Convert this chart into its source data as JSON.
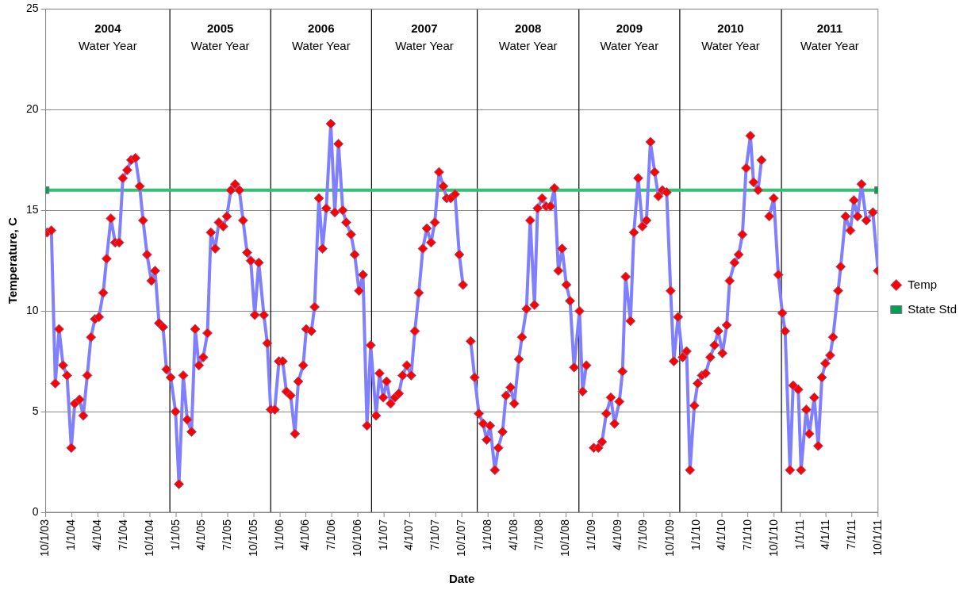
{
  "chart_data": {
    "type": "line",
    "xlabel": "Date",
    "ylabel": "Temperature, C",
    "xlim": [
      "2003-10-01",
      "2011-10-01"
    ],
    "ylim": [
      0,
      25
    ],
    "yticks": [
      0,
      5,
      10,
      15,
      20,
      25
    ],
    "xticks": [
      {
        "value": "2003-10-01",
        "label": "10/1/03"
      },
      {
        "value": "2004-01-01",
        "label": "1/1/04"
      },
      {
        "value": "2004-04-01",
        "label": "4/1/04"
      },
      {
        "value": "2004-07-01",
        "label": "7/1/04"
      },
      {
        "value": "2004-10-01",
        "label": "10/1/04"
      },
      {
        "value": "2005-01-01",
        "label": "1/1/05"
      },
      {
        "value": "2005-04-01",
        "label": "4/1/05"
      },
      {
        "value": "2005-07-01",
        "label": "7/1/05"
      },
      {
        "value": "2005-10-01",
        "label": "10/1/05"
      },
      {
        "value": "2006-01-01",
        "label": "1/1/06"
      },
      {
        "value": "2006-04-01",
        "label": "4/1/06"
      },
      {
        "value": "2006-07-01",
        "label": "7/1/06"
      },
      {
        "value": "2006-10-01",
        "label": "10/1/06"
      },
      {
        "value": "2007-01-01",
        "label": "1/1/07"
      },
      {
        "value": "2007-04-01",
        "label": "4/1/07"
      },
      {
        "value": "2007-07-01",
        "label": "7/1/07"
      },
      {
        "value": "2007-10-01",
        "label": "10/1/07"
      },
      {
        "value": "2008-01-01",
        "label": "1/1/08"
      },
      {
        "value": "2008-04-01",
        "label": "4/1/08"
      },
      {
        "value": "2008-07-01",
        "label": "7/1/08"
      },
      {
        "value": "2008-10-01",
        "label": "10/1/08"
      },
      {
        "value": "2009-01-01",
        "label": "1/1/09"
      },
      {
        "value": "2009-04-01",
        "label": "4/1/09"
      },
      {
        "value": "2009-07-01",
        "label": "7/1/09"
      },
      {
        "value": "2009-10-01",
        "label": "10/1/09"
      },
      {
        "value": "2010-01-01",
        "label": "1/1/10"
      },
      {
        "value": "2010-04-01",
        "label": "4/1/10"
      },
      {
        "value": "2010-07-01",
        "label": "7/1/10"
      },
      {
        "value": "2010-10-01",
        "label": "10/1/10"
      },
      {
        "value": "2011-01-01",
        "label": "1/1/11"
      },
      {
        "value": "2011-04-01",
        "label": "4/1/11"
      },
      {
        "value": "2011-07-01",
        "label": "7/1/11"
      },
      {
        "value": "2011-10-01",
        "label": "10/1/11"
      }
    ],
    "grid": "y",
    "legend": "right",
    "line_style": "solid",
    "series": [
      {
        "name": "Temp",
        "color": "#8080ff",
        "marker": "diamond",
        "x": [
          "2003-10-06",
          "2003-10-21",
          "2003-11-04",
          "2003-11-17",
          "2003-12-01",
          "2003-12-15",
          "2003-12-30",
          "2004-01-11",
          "2004-01-28",
          "2004-02-10",
          "2004-02-24",
          "2004-03-08",
          "2004-03-22",
          "2004-04-05",
          "2004-04-20",
          "2004-05-02",
          "2004-05-17",
          "2004-06-01",
          "2004-06-15",
          "2004-06-28",
          "2004-07-13",
          "2004-07-27",
          "2004-08-11",
          "2004-08-26",
          "2004-09-07",
          "2004-09-21",
          "2004-10-06",
          "2004-10-19",
          "2004-11-02",
          "2004-11-16",
          "2004-11-28",
          "2004-12-13",
          "2004-12-30",
          "2005-01-11",
          "2005-01-26",
          "2005-02-09",
          "2005-02-24",
          "2005-03-09",
          "2005-03-22",
          "2005-04-06",
          "2005-04-21",
          "2005-05-03",
          "2005-05-18",
          "2005-05-31",
          "2005-06-15",
          "2005-06-28",
          "2005-07-12",
          "2005-07-27",
          "2005-08-11",
          "2005-08-24",
          "2005-09-07",
          "2005-09-20",
          "2005-10-04",
          "2005-10-18",
          "2005-11-05",
          "2005-11-17",
          "2005-11-29",
          "2005-12-13",
          "2005-12-28",
          "2006-01-10",
          "2006-01-23",
          "2006-02-07",
          "2006-02-22",
          "2006-03-06",
          "2006-03-23",
          "2006-04-03",
          "2006-04-21",
          "2006-05-02",
          "2006-05-17",
          "2006-05-30",
          "2006-06-12",
          "2006-06-28",
          "2006-07-12",
          "2006-07-25",
          "2006-08-09",
          "2006-08-21",
          "2006-09-07",
          "2006-09-20",
          "2006-10-05",
          "2006-10-19",
          "2006-11-02",
          "2006-11-15",
          "2006-12-04",
          "2006-12-16",
          "2006-12-29",
          "2007-01-10",
          "2007-01-24",
          "2007-02-08",
          "2007-02-22",
          "2007-03-07",
          "2007-03-22",
          "2007-04-06",
          "2007-04-19",
          "2007-05-03",
          "2007-05-17",
          "2007-05-31",
          "2007-06-15",
          "2007-06-28",
          "2007-07-13",
          "2007-07-28",
          "2007-08-09",
          "2007-08-23",
          "2007-09-07",
          "2007-09-22",
          "2007-10-05",
          "2007-10-18",
          "2007-11-01",
          "2007-11-15",
          "2007-11-30",
          "2007-12-15",
          "2007-12-27",
          "2008-01-08",
          "2008-01-25",
          "2008-02-06",
          "2008-02-21",
          "2008-03-04",
          "2008-03-20",
          "2008-04-02",
          "2008-04-18",
          "2008-04-29",
          "2008-05-15",
          "2008-05-28",
          "2008-06-12",
          "2008-06-23",
          "2008-07-09",
          "2008-07-23",
          "2008-08-07",
          "2008-08-21",
          "2008-09-04",
          "2008-09-17",
          "2008-10-02",
          "2008-10-15",
          "2008-10-29",
          "2008-11-17",
          "2008-11-28",
          "2008-12-11",
          "2008-12-25",
          "2009-01-06",
          "2009-01-22",
          "2009-02-04",
          "2009-02-19",
          "2009-03-07",
          "2009-03-20",
          "2009-04-06",
          "2009-04-17",
          "2009-04-28",
          "2009-05-15",
          "2009-05-27",
          "2009-06-11",
          "2009-06-26",
          "2009-07-10",
          "2009-07-24",
          "2009-08-08",
          "2009-08-21",
          "2009-09-04",
          "2009-09-19",
          "2009-10-03",
          "2009-10-14",
          "2009-10-29",
          "2009-11-14",
          "2009-11-28",
          "2009-12-10",
          "2009-12-25",
          "2010-01-06",
          "2010-01-21",
          "2010-02-03",
          "2010-02-19",
          "2010-03-06",
          "2010-03-19",
          "2010-04-03",
          "2010-04-18",
          "2010-04-28",
          "2010-05-15",
          "2010-05-30",
          "2010-06-12",
          "2010-06-25",
          "2010-07-10",
          "2010-07-21",
          "2010-08-06",
          "2010-08-18",
          "2010-09-01",
          "2010-09-14",
          "2010-09-30",
          "2010-10-16",
          "2010-10-30",
          "2010-11-09",
          "2010-11-26",
          "2010-12-07",
          "2010-12-25",
          "2011-01-04",
          "2011-01-22",
          "2011-02-02",
          "2011-02-19",
          "2011-03-05",
          "2011-03-18",
          "2011-03-30",
          "2011-04-16",
          "2011-04-26",
          "2011-05-14",
          "2011-05-23",
          "2011-06-09",
          "2011-06-26",
          "2011-07-08",
          "2011-07-21",
          "2011-08-04",
          "2011-08-21",
          "2011-09-13",
          "2011-10-01"
        ],
        "values": [
          13.9,
          14.0,
          6.4,
          9.1,
          7.3,
          6.8,
          3.2,
          5.4,
          5.6,
          4.8,
          6.8,
          8.7,
          9.6,
          9.7,
          10.9,
          12.6,
          14.6,
          13.4,
          13.4,
          16.6,
          17.0,
          17.5,
          17.6,
          16.2,
          14.5,
          12.8,
          11.5,
          12.0,
          9.4,
          9.2,
          7.1,
          6.7,
          5.0,
          1.4,
          6.8,
          4.6,
          4.0,
          9.1,
          7.3,
          7.7,
          8.9,
          13.9,
          13.1,
          14.4,
          14.2,
          14.7,
          16.0,
          16.3,
          16.0,
          14.5,
          12.9,
          12.5,
          9.8,
          12.4,
          9.8,
          8.4,
          5.1,
          5.1,
          7.5,
          7.5,
          6.0,
          5.8,
          3.9,
          6.5,
          7.3,
          9.1,
          9.0,
          10.2,
          15.6,
          13.1,
          15.1,
          19.3,
          14.9,
          18.3,
          15.0,
          14.4,
          13.8,
          12.8,
          11.0,
          11.8,
          4.3,
          8.3,
          4.8,
          6.9,
          5.7,
          6.5,
          5.4,
          5.7,
          5.9,
          6.8,
          7.3,
          6.8,
          9.0,
          10.9,
          13.1,
          14.1,
          13.4,
          14.4,
          16.9,
          16.2,
          15.6,
          15.6,
          15.8,
          12.8,
          11.3,
          null,
          8.5,
          6.7,
          4.9,
          4.4,
          3.6,
          4.3,
          2.1,
          3.2,
          4.0,
          5.8,
          6.2,
          5.4,
          7.6,
          8.7,
          10.1,
          14.5,
          10.3,
          15.1,
          15.6,
          15.2,
          15.2,
          16.1,
          12.0,
          13.1,
          11.3,
          10.5,
          7.2,
          10.0,
          6.0,
          7.3,
          null,
          3.2,
          3.2,
          3.5,
          4.9,
          5.7,
          4.4,
          5.5,
          7.0,
          11.7,
          9.5,
          13.9,
          16.6,
          14.2,
          14.5,
          18.4,
          16.9,
          15.7,
          16.0,
          15.9,
          11.0,
          7.5,
          9.7,
          7.7,
          8.0,
          2.1,
          5.3,
          6.4,
          6.8,
          6.9,
          7.7,
          8.3,
          9.0,
          7.9,
          9.3,
          11.5,
          12.4,
          12.8,
          13.8,
          17.1,
          18.7,
          16.4,
          16.0,
          17.5,
          null,
          14.7,
          15.6,
          11.8,
          9.9,
          9.0,
          2.1,
          6.3,
          6.1,
          2.1,
          5.1,
          3.9,
          5.7,
          3.3,
          6.7,
          7.4,
          7.8,
          8.7,
          11.0,
          12.2,
          14.7,
          14.0,
          15.5,
          14.7,
          16.3,
          14.5,
          14.9,
          12.0
        ],
        "colors": [
          "#ff0000",
          "#ff0000",
          "#ff0000",
          "#ff0000",
          "#ff0000",
          "#ff0000",
          "#ff0000",
          "#ff0000",
          "#ff0000",
          "#ff0000",
          "#ff0000",
          "#ff0000",
          "#ff0000",
          "#ff0000",
          "#ff0000",
          "#ff0000",
          "#ff0000",
          "#ff0000",
          "#ff0000",
          "#ff0000",
          "#ff0000",
          "#ff0000",
          "#ff0000",
          "#ff0000",
          "#ff0000",
          "#ff0000",
          "#ff0000",
          "#ff0000",
          "#ff0000",
          "#ff0000",
          "#ff0000",
          "#ff0000",
          "#ff0000",
          "#ff0000",
          "#ff0000",
          "#ff0000",
          "#ff0000",
          "#ff0000",
          "#ff0000",
          "#ff0000",
          "#ff0000",
          "#ff0000",
          "#ff0000",
          "#ff0000",
          "#ff0000",
          "#ff0000",
          "#ff0000",
          "#ff0000",
          "#ff0000",
          "#ff0000",
          "#ff0000",
          "#ff0000",
          "#ff0000",
          "#ff0000",
          "#ff0000",
          "#ff0000",
          "#ff0000",
          "#ff0000",
          "#ff0000",
          "#ff0000",
          "#ff0000",
          "#ff0000",
          "#ff0000",
          "#ff0000",
          "#ff0000",
          "#ff0000",
          "#ff0000",
          "#ff0000",
          "#ff0000",
          "#ff0000",
          "#ff0000",
          "#ff0000",
          "#ff0000",
          "#ff0000",
          "#ff0000",
          "#ff0000",
          "#ff0000",
          "#ff0000",
          "#ff0000",
          "#ff0000",
          "#ff0000",
          "#ff0000",
          "#ff0000",
          "#ff0000",
          "#ff0000",
          "#ff0000",
          "#ff0000",
          "#ff0000",
          "#ff0000",
          "#ff0000",
          "#ff0000",
          "#ff0000",
          "#ff0000",
          "#ff0000",
          "#ff0000",
          "#ff0000",
          "#ff0000",
          "#ff0000",
          "#ff0000",
          "#ff0000",
          "#ff0000",
          "#ff0000",
          "#ff0000",
          "#ff0000",
          "#ff0000",
          "#ff0000",
          "#ff0000",
          "#ff0000",
          "#ff0000",
          "#ff0000",
          "#ff0000",
          "#ff0000",
          "#ff0000",
          "#ff0000",
          "#ff0000",
          "#ff0000",
          "#ff0000",
          "#ff0000",
          "#ff0000",
          "#ff0000",
          "#ff0000",
          "#ff0000",
          "#ff0000",
          "#ff0000",
          "#ff0000",
          "#ff0000",
          "#ff0000",
          "#ff0000",
          "#ff0000",
          "#ff0000",
          "#ff0000",
          "#ff0000",
          "#ff0000",
          "#ff0000",
          "#ff0000",
          "#ff0000",
          "#ff0000",
          "#ff0000",
          "#ff0000",
          "#ff0000",
          "#ff0000",
          "#ff0000",
          "#ff0000",
          "#ff0000",
          "#ff0000",
          "#ff0000",
          "#ff0000",
          "#ff0000",
          "#ff0000",
          "#ff0000",
          "#ff0000",
          "#ff0000",
          "#ff0000",
          "#ff0000",
          "#ff0000",
          "#ff0000",
          "#ff0000",
          "#ff0000",
          "#ff0000",
          "#ff0000",
          "#ff0000",
          "#ff0000",
          "#ff0000",
          "#ff0000",
          "#ff0000",
          "#ff0000",
          "#ff0000",
          "#ff0000",
          "#ff0000",
          "#ff0000",
          "#ff0000",
          "#ff0000",
          "#ff0000",
          "#ff0000",
          "#ff0000",
          "#ff0000",
          "#ff0000",
          "#ff0000",
          "#ff0000",
          "#ff0000",
          "#ff0000",
          "#ff0000",
          "#ff0000",
          "#ff0000",
          "#ff0000",
          "#ff0000",
          "#ff0000",
          "#ff0000",
          "#ff0000",
          "#ff0000",
          "#ff0000",
          "#ff0000",
          "#ff0000",
          "#ff0000",
          "#ff0000",
          "#ff0000",
          "#ff0000",
          "#ff0000",
          "#ff0000",
          "#ff0000",
          "#ff0000",
          "#ff0000",
          "#ff0000",
          "#ff0000",
          "#ff0000",
          "#ff0000",
          "#ff0000",
          "#ff0000"
        ]
      },
      {
        "name": "State Std",
        "color": "#33c070",
        "marker": "square",
        "x": [
          "2003-10-01",
          "2011-10-01"
        ],
        "values": [
          16,
          16
        ],
        "colors": [
          "#00a050",
          "#00a050"
        ]
      }
    ],
    "ref_lines": [
      {
        "axis": "x",
        "value": "2004-12-10",
        "color": "#000000"
      },
      {
        "axis": "x",
        "value": "2005-11-29",
        "color": "#000000"
      },
      {
        "axis": "x",
        "value": "2006-11-18",
        "color": "#000000"
      },
      {
        "axis": "x",
        "value": "2007-11-24",
        "color": "#000000"
      },
      {
        "axis": "x",
        "value": "2008-11-15",
        "color": "#000000"
      },
      {
        "axis": "x",
        "value": "2009-11-04",
        "color": "#000000"
      },
      {
        "axis": "x",
        "value": "2010-10-27",
        "color": "#000000"
      }
    ],
    "annotations": [
      "2004 Water Year",
      "2005 Water Year",
      "2006 Water Year",
      "2007 Water Year",
      "2008 Water Year",
      "2009 Water Year",
      "2010 Water Year",
      "2011 Water Year"
    ]
  }
}
